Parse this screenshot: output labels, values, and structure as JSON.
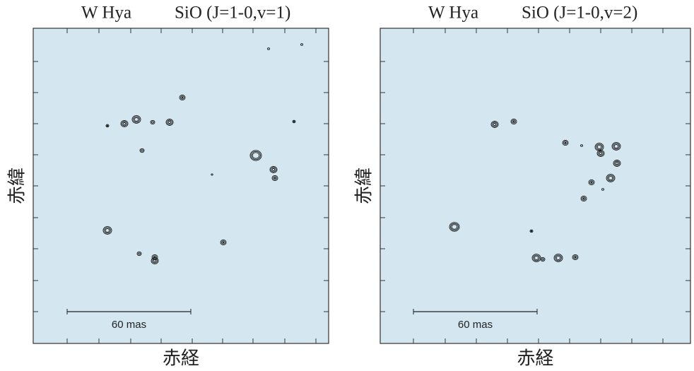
{
  "panels": [
    {
      "source": "W Hya",
      "line": "SiO (J=1-0,v=1)",
      "ylabel": "赤緯",
      "xlabel": "赤経",
      "scale_label": "60 mas"
    },
    {
      "source": "W Hya",
      "line": "SiO (J=1-0,v=2)",
      "ylabel": "赤緯",
      "xlabel": "赤経",
      "scale_label": "60 mas"
    }
  ]
}
